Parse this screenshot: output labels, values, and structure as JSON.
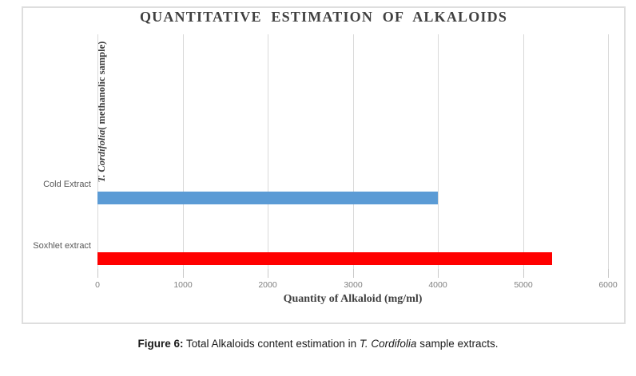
{
  "figure": {
    "caption_prefix": "Figure 6:",
    "caption_body": " Total Alkaloids content estimation in ",
    "caption_italic": "T. Cordifolia",
    "caption_suffix": " sample extracts."
  },
  "chart_data": {
    "type": "bar",
    "orientation": "horizontal",
    "title": "QUANTITATIVE ESTIMATION OF ALKALOIDS",
    "categories": [
      "Cold Extract",
      "Soxhlet extract"
    ],
    "values": [
      4000,
      5340
    ],
    "bar_colors": [
      "#5B9BD5",
      "#FF0000"
    ],
    "xlabel": "Quantity of Alkaloid (mg/ml)",
    "ylabel_italic": "T. Cordifolia",
    "ylabel_rest": "( methanolic sample)",
    "xlim": [
      0,
      6000
    ],
    "xticks": [
      0,
      1000,
      2000,
      3000,
      4000,
      5000,
      6000
    ],
    "grid": true,
    "legend": false,
    "gridline_color": "#d9d9d9",
    "tick_color": "#c9c9c9"
  }
}
